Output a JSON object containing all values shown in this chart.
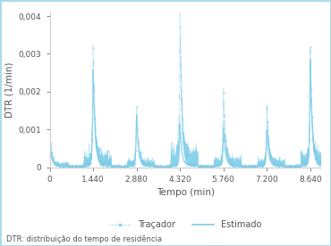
{
  "ylabel": "DTR (1/min)",
  "xlabel": "Tempo (min)",
  "footnote": "DTR: distribuição do tempo de residência",
  "legend_labels": [
    "Traçador",
    "Estimado"
  ],
  "tracer_color": "#7ecde8",
  "estimated_color": "#7ecde8",
  "border_color": "#a8dce8",
  "background_color": "#ffffff",
  "xlim": [
    0,
    9000
  ],
  "ylim": [
    0,
    0.0041
  ],
  "xticks": [
    0,
    1440,
    2880,
    4320,
    5760,
    7200,
    8640
  ],
  "xtick_labels": [
    "0",
    "1.440",
    "2.880",
    "4.320",
    "5.760",
    "7.200",
    "8.640"
  ],
  "yticks": [
    0,
    0.001,
    0.002,
    0.003,
    0.004
  ],
  "ytick_labels": [
    "0",
    "0,001",
    "0,002",
    "0,003",
    "0,004"
  ],
  "peak_times": [
    10,
    1440,
    2880,
    4320,
    5760,
    7200,
    8640
  ],
  "peak_heights_tracer": [
    0.00085,
    0.0031,
    0.00148,
    0.00395,
    0.00195,
    0.00155,
    0.0031
  ],
  "peak_heights_estimated": [
    0.0006,
    0.00265,
    0.0014,
    0.00115,
    0.00105,
    0.001,
    0.0029
  ],
  "base_noise": 8e-05,
  "decay_rate": 0.003
}
